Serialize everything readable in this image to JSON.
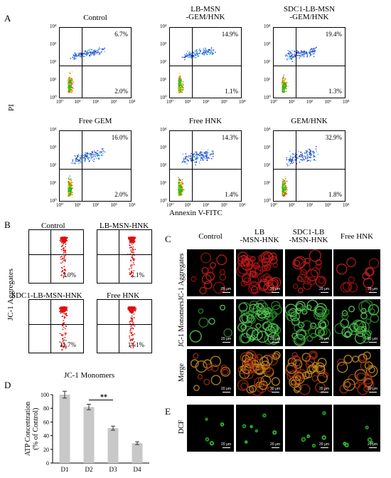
{
  "panelA": {
    "label": "A",
    "ylabel": "PI",
    "xlabel": "Annexin V-FITC",
    "plots": [
      {
        "title": [
          "Control"
        ],
        "ur": "6.7%",
        "lr": "2.0%"
      },
      {
        "title": [
          "LB-MSN",
          "-GEM/HNK"
        ],
        "ur": "14.9%",
        "lr": "1.1%"
      },
      {
        "title": [
          "SDC1-LB-MSN",
          "-GEM/HNK"
        ],
        "ur": "19.4%",
        "lr": "1.3%"
      },
      {
        "title": [
          "Free GEM"
        ],
        "ur": "16.0%",
        "lr": "2.0%"
      },
      {
        "title": [
          "Free HNK"
        ],
        "ur": "14.3%",
        "lr": "1.4%"
      },
      {
        "title": [
          "GEM/HNK"
        ],
        "ur": "32.9%",
        "lr": "1.8%"
      }
    ],
    "yticks": [
      "10⁴",
      "10³",
      "10²",
      "10¹",
      "10⁰"
    ],
    "xticks": [
      "10⁰",
      "10¹",
      "10²",
      "10³",
      "10⁴"
    ]
  },
  "panelB": {
    "label": "B",
    "ylabel": "JC-1 Aggregates",
    "xlabel": "JC-1 Monomers",
    "plots": [
      {
        "title": "Control",
        "pct": "3.0%"
      },
      {
        "title": "LB-MSN-HNK",
        "pct": "7.1%"
      },
      {
        "title": "SDC1-LB-MSN-HNK",
        "pct": "11.7%"
      },
      {
        "title": "Free HNK",
        "pct": "14.1%"
      }
    ]
  },
  "panelC": {
    "label": "C",
    "columns": [
      [
        "Control"
      ],
      [
        "LB",
        "-MSN-HNK"
      ],
      [
        "SDC1-LB",
        "-MSN-HNK"
      ],
      [
        "Free HNK"
      ]
    ],
    "rows": [
      "JC-1 Aggregates",
      "JC-1 Monomers",
      "Merge"
    ],
    "scale": "20 μm"
  },
  "panelE": {
    "label": "E",
    "row": "DCF"
  },
  "chart_data": {
    "type": "bar",
    "panel": "D",
    "categories": [
      "D1",
      "D2",
      "D3",
      "D4"
    ],
    "values": [
      100,
      82,
      51,
      29
    ],
    "errors": [
      5,
      4,
      3,
      2
    ],
    "ylabel": "ATP Concentration (% of Control)",
    "ylim": [
      0,
      100
    ],
    "yticks": [
      0,
      20,
      40,
      60,
      80,
      100
    ],
    "annotation": "**",
    "bar_color": "#c8c8c8"
  },
  "colors": {
    "flow_blue": "#2a3ec8",
    "flow_red": "#e01010",
    "green": "#2fd12f"
  }
}
